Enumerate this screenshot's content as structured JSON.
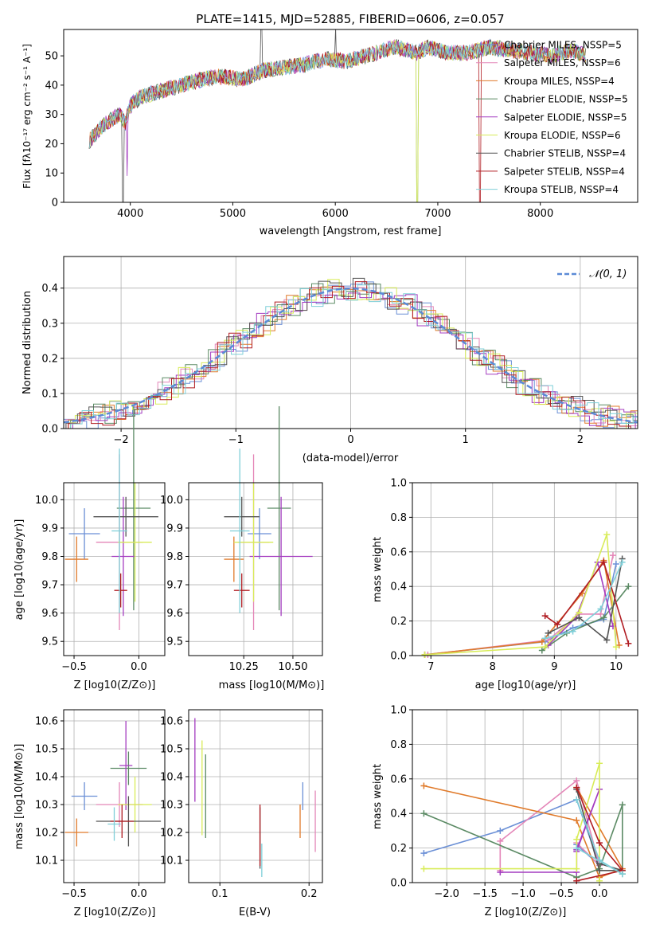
{
  "colors": {
    "palette": [
      "#6a8fd6",
      "#e486b8",
      "#e07a2a",
      "#5b8a64",
      "#a43cc0",
      "#d8ec58",
      "#545454",
      "#b01c22",
      "#7fcfd8"
    ],
    "normal_line": "#5b8ad6"
  },
  "chart_data": [
    {
      "type": "line",
      "title": "PLATE=1415, MJD=52885, FIBERID=0606, z=0.057",
      "xlabel": "wavelength [Angstrom, rest frame]",
      "ylabel": "Flux [fλ10⁻¹⁷ erg cm⁻² s⁻¹ A⁻¹]",
      "xlim": [
        3350,
        8950
      ],
      "ylim": [
        0,
        59
      ],
      "xticks": [
        4000,
        5000,
        6000,
        7000,
        8000
      ],
      "yticks": [
        0,
        10,
        20,
        30,
        40,
        50
      ],
      "legend_position": "right",
      "series": [
        {
          "name": "Chabrier MILES, NSSP=5"
        },
        {
          "name": "Salpeter MILES, NSSP=6"
        },
        {
          "name": "Kroupa MILES, NSSP=4"
        },
        {
          "name": "Chabrier ELODIE, NSSP=5"
        },
        {
          "name": "Salpeter ELODIE, NSSP=5"
        },
        {
          "name": "Kroupa ELODIE, NSSP=6"
        },
        {
          "name": "Chabrier STELIB, NSSP=4"
        },
        {
          "name": "Salpeter STELIB, NSSP=4"
        },
        {
          "name": "Kroupa STELIB, NSSP=4"
        }
      ],
      "spectrum_anchors": {
        "wavelength": [
          3600,
          3700,
          3800,
          3900,
          3950,
          4000,
          4100,
          4200,
          4300,
          4400,
          4500,
          4700,
          4900,
          5100,
          5300,
          5500,
          5700,
          5900,
          6100,
          6300,
          6500,
          6600,
          6800,
          6900,
          7100,
          7300,
          7500,
          7700,
          7900,
          8100,
          8300,
          8450
        ],
        "flux": [
          21,
          25,
          28,
          30,
          27,
          33,
          36,
          37,
          38,
          39,
          40,
          42,
          43,
          42,
          45,
          46,
          47,
          49,
          48,
          50,
          52,
          53,
          51,
          53,
          51,
          51,
          53,
          52,
          51,
          50,
          52,
          50
        ]
      }
    },
    {
      "type": "line",
      "xlabel": "(data-model)/error",
      "ylabel": "Normed distribution",
      "xlim": [
        -2.5,
        2.5
      ],
      "ylim": [
        0,
        0.49
      ],
      "xticks": [
        -2,
        -1,
        0,
        1,
        2
      ],
      "yticks": [
        0.0,
        0.1,
        0.2,
        0.3,
        0.4
      ],
      "grid": true,
      "legend_position": "top-right",
      "legend": "𝒩(0, 1)"
    },
    {
      "type": "scatter",
      "xlabel": "Z [log10(Z/Z⊙)]",
      "ylabel": "age  [log10(age/yr)]",
      "xlim": [
        -0.58,
        0.2
      ],
      "ylim": [
        9.45,
        10.06
      ],
      "xticks": [
        -0.5,
        0.0
      ],
      "yticks": [
        9.5,
        9.6,
        9.7,
        9.8,
        9.9,
        10.0
      ],
      "grid": true,
      "points": [
        {
          "x": -0.42,
          "xerr": 0.12,
          "y": 9.88,
          "yerr": 0.09
        },
        {
          "x": -0.15,
          "xerr": 0.18,
          "y": 9.85,
          "yerr": 0.31
        },
        {
          "x": -0.48,
          "xerr": 0.09,
          "y": 9.79,
          "yerr": 0.08
        },
        {
          "x": -0.04,
          "xerr": 0.13,
          "y": 9.97,
          "yerr": 0.36
        },
        {
          "x": -0.12,
          "xerr": 0.09,
          "y": 9.8,
          "yerr": 0.21
        },
        {
          "x": -0.03,
          "xerr": 0.13,
          "y": 9.85,
          "yerr": 0.21
        },
        {
          "x": -0.1,
          "xerr": 0.25,
          "y": 9.94,
          "yerr": 0.07
        },
        {
          "x": -0.14,
          "xerr": 0.05,
          "y": 9.68,
          "yerr": 0.06
        },
        {
          "x": -0.15,
          "xerr": 0.06,
          "y": 9.89,
          "yerr": 0.29
        }
      ]
    },
    {
      "type": "scatter",
      "xlabel": "mass [log10(M/M⊙)]",
      "ylabel": "",
      "xlim": [
        9.97,
        10.65
      ],
      "ylim": [
        9.45,
        10.06
      ],
      "xticks": [
        10.25,
        10.5
      ],
      "yticks": [
        9.5,
        9.6,
        9.7,
        9.8,
        9.9,
        10.0
      ],
      "grid": true,
      "points": [
        {
          "x": 10.33,
          "xerr": 0.06,
          "y": 9.88,
          "yerr": 0.09
        },
        {
          "x": 10.3,
          "xerr": 0.08,
          "y": 9.85,
          "yerr": 0.31
        },
        {
          "x": 10.2,
          "xerr": 0.05,
          "y": 9.79,
          "yerr": 0.08
        },
        {
          "x": 10.43,
          "xerr": 0.06,
          "y": 9.97,
          "yerr": 0.36
        },
        {
          "x": 10.44,
          "xerr": 0.16,
          "y": 9.8,
          "yerr": 0.21
        },
        {
          "x": 10.3,
          "xerr": 0.1,
          "y": 9.85,
          "yerr": 0.21
        },
        {
          "x": 10.24,
          "xerr": 0.09,
          "y": 9.94,
          "yerr": 0.07
        },
        {
          "x": 10.24,
          "xerr": 0.04,
          "y": 9.68,
          "yerr": 0.06
        },
        {
          "x": 10.23,
          "xerr": 0.05,
          "y": 9.89,
          "yerr": 0.29
        }
      ]
    },
    {
      "type": "line",
      "xlabel": "age  [log10(age/yr)]",
      "ylabel": "mass weight",
      "xlim": [
        6.7,
        10.35
      ],
      "ylim": [
        0,
        1.0
      ],
      "xticks": [
        7,
        8,
        9,
        10
      ],
      "yticks": [
        0.0,
        0.2,
        0.4,
        0.6,
        0.8,
        1.0
      ],
      "grid": true,
      "series": [
        {
          "x": [
            6.9,
            8.85,
            9.3,
            9.8,
            10.0
          ],
          "y": [
            0.005,
            0.08,
            0.16,
            0.21,
            0.53
          ]
        },
        {
          "x": [
            6.95,
            8.9,
            9.4,
            9.75,
            9.95
          ],
          "y": [
            0.005,
            0.09,
            0.24,
            0.24,
            0.58
          ]
        },
        {
          "x": [
            6.9,
            8.8,
            9.45,
            9.8,
            10.05
          ],
          "y": [
            0.005,
            0.08,
            0.36,
            0.55,
            0.06
          ]
        },
        {
          "x": [
            8.8,
            9.2,
            9.8,
            10.2
          ],
          "y": [
            0.03,
            0.13,
            0.22,
            0.4
          ]
        },
        {
          "x": [
            8.9,
            9.35,
            9.7,
            9.95
          ],
          "y": [
            0.06,
            0.22,
            0.54,
            0.17
          ]
        },
        {
          "x": [
            6.9,
            8.85,
            9.4,
            9.85,
            10.0
          ],
          "y": [
            0.005,
            0.05,
            0.25,
            0.7,
            0.05
          ]
        },
        {
          "x": [
            8.9,
            9.4,
            9.85,
            10.1
          ],
          "y": [
            0.13,
            0.22,
            0.09,
            0.56
          ]
        },
        {
          "x": [
            8.85,
            9.05,
            9.8,
            10.2
          ],
          "y": [
            0.23,
            0.18,
            0.54,
            0.07
          ]
        },
        {
          "x": [
            8.85,
            9.3,
            9.75,
            10.1
          ],
          "y": [
            0.1,
            0.14,
            0.27,
            0.54
          ]
        }
      ]
    },
    {
      "type": "scatter",
      "xlabel": "Z [log10(Z/Z⊙)]",
      "ylabel": "mass [log10(M/M⊙)]",
      "xlim": [
        -0.58,
        0.2
      ],
      "ylim": [
        10.02,
        10.64
      ],
      "xticks": [
        -0.5,
        0.0
      ],
      "yticks": [
        10.1,
        10.2,
        10.3,
        10.4,
        10.5,
        10.6
      ],
      "grid": true,
      "points": [
        {
          "x": -0.42,
          "xerr": 0.1,
          "y": 10.33,
          "yerr": 0.05
        },
        {
          "x": -0.15,
          "xerr": 0.18,
          "y": 10.3,
          "yerr": 0.08
        },
        {
          "x": -0.48,
          "xerr": 0.09,
          "y": 10.2,
          "yerr": 0.05
        },
        {
          "x": -0.08,
          "xerr": 0.14,
          "y": 10.43,
          "yerr": 0.06
        },
        {
          "x": -0.1,
          "xerr": 0.05,
          "y": 10.44,
          "yerr": 0.16
        },
        {
          "x": -0.03,
          "xerr": 0.13,
          "y": 10.3,
          "yerr": 0.1
        },
        {
          "x": -0.08,
          "xerr": 0.25,
          "y": 10.24,
          "yerr": 0.09
        },
        {
          "x": -0.13,
          "xerr": 0.09,
          "y": 10.24,
          "yerr": 0.06
        },
        {
          "x": -0.19,
          "xerr": 0.05,
          "y": 10.23,
          "yerr": 0.06
        }
      ]
    },
    {
      "type": "scatter",
      "xlabel": "E(B-V)",
      "ylabel": "",
      "xlim": [
        0.065,
        0.215
      ],
      "ylim": [
        10.02,
        10.64
      ],
      "xticks": [
        0.1,
        0.2
      ],
      "yticks": [
        10.1,
        10.2,
        10.3,
        10.4,
        10.5,
        10.6
      ],
      "grid": true,
      "points": [
        {
          "x": 0.193,
          "y": 10.33,
          "yerr": 0.05
        },
        {
          "x": 0.207,
          "y": 10.24,
          "yerr": 0.11
        },
        {
          "x": 0.19,
          "y": 10.24,
          "yerr": 0.06
        },
        {
          "x": 0.084,
          "y": 10.33,
          "yerr": 0.15
        },
        {
          "x": 0.072,
          "y": 10.46,
          "yerr": 0.15
        },
        {
          "x": 0.08,
          "y": 10.36,
          "yerr": 0.17
        },
        {
          "x": 0.145,
          "y": 10.18,
          "yerr": 0.11
        },
        {
          "x": 0.145,
          "y": 10.19,
          "yerr": 0.11
        },
        {
          "x": 0.147,
          "y": 10.1,
          "yerr": 0.06
        }
      ]
    },
    {
      "type": "line",
      "xlabel": "Z [log10(Z/Z⊙)]",
      "ylabel": "mass weight",
      "xlim": [
        -2.45,
        0.5
      ],
      "ylim": [
        0,
        1.0
      ],
      "xticks": [
        -2.0,
        -1.5,
        -1.0,
        -0.5,
        0.0
      ],
      "yticks": [
        0.0,
        0.2,
        0.4,
        0.6,
        0.8,
        1.0
      ],
      "grid": true,
      "series": [
        {
          "x": [
            -2.3,
            -1.3,
            -0.3,
            0.0,
            -0.3
          ],
          "y": [
            0.17,
            0.3,
            0.48,
            0.1,
            0.22
          ]
        },
        {
          "x": [
            -1.3,
            -1.3,
            -0.3,
            0.0,
            -0.3
          ],
          "y": [
            0.07,
            0.24,
            0.59,
            0.1,
            0.23
          ]
        },
        {
          "x": [
            -2.3,
            -0.3,
            0.0,
            0.3,
            -0.3
          ],
          "y": [
            0.56,
            0.36,
            0.03,
            0.08,
            0.55
          ]
        },
        {
          "x": [
            -2.3,
            -0.3,
            0.0,
            0.3,
            0.3
          ],
          "y": [
            0.4,
            0.03,
            0.08,
            0.45,
            0.05
          ]
        },
        {
          "x": [
            -1.3,
            -0.3,
            -0.3,
            0.0,
            -0.3
          ],
          "y": [
            0.06,
            0.06,
            0.18,
            0.54,
            0.19
          ]
        },
        {
          "x": [
            -2.3,
            -0.3,
            -0.3,
            0.0,
            0.0
          ],
          "y": [
            0.08,
            0.08,
            0.25,
            0.69,
            0.01
          ]
        },
        {
          "x": [
            -0.3,
            0.0,
            0.3,
            0.0
          ],
          "y": [
            0.54,
            0.07,
            0.07,
            0.11
          ]
        },
        {
          "x": [
            -0.3,
            0.0,
            0.3,
            -0.3
          ],
          "y": [
            0.55,
            0.23,
            0.07,
            0.01
          ]
        },
        {
          "x": [
            -0.3,
            0.0,
            0.3,
            -0.3
          ],
          "y": [
            0.48,
            0.13,
            0.05,
            0.2
          ]
        }
      ]
    }
  ]
}
